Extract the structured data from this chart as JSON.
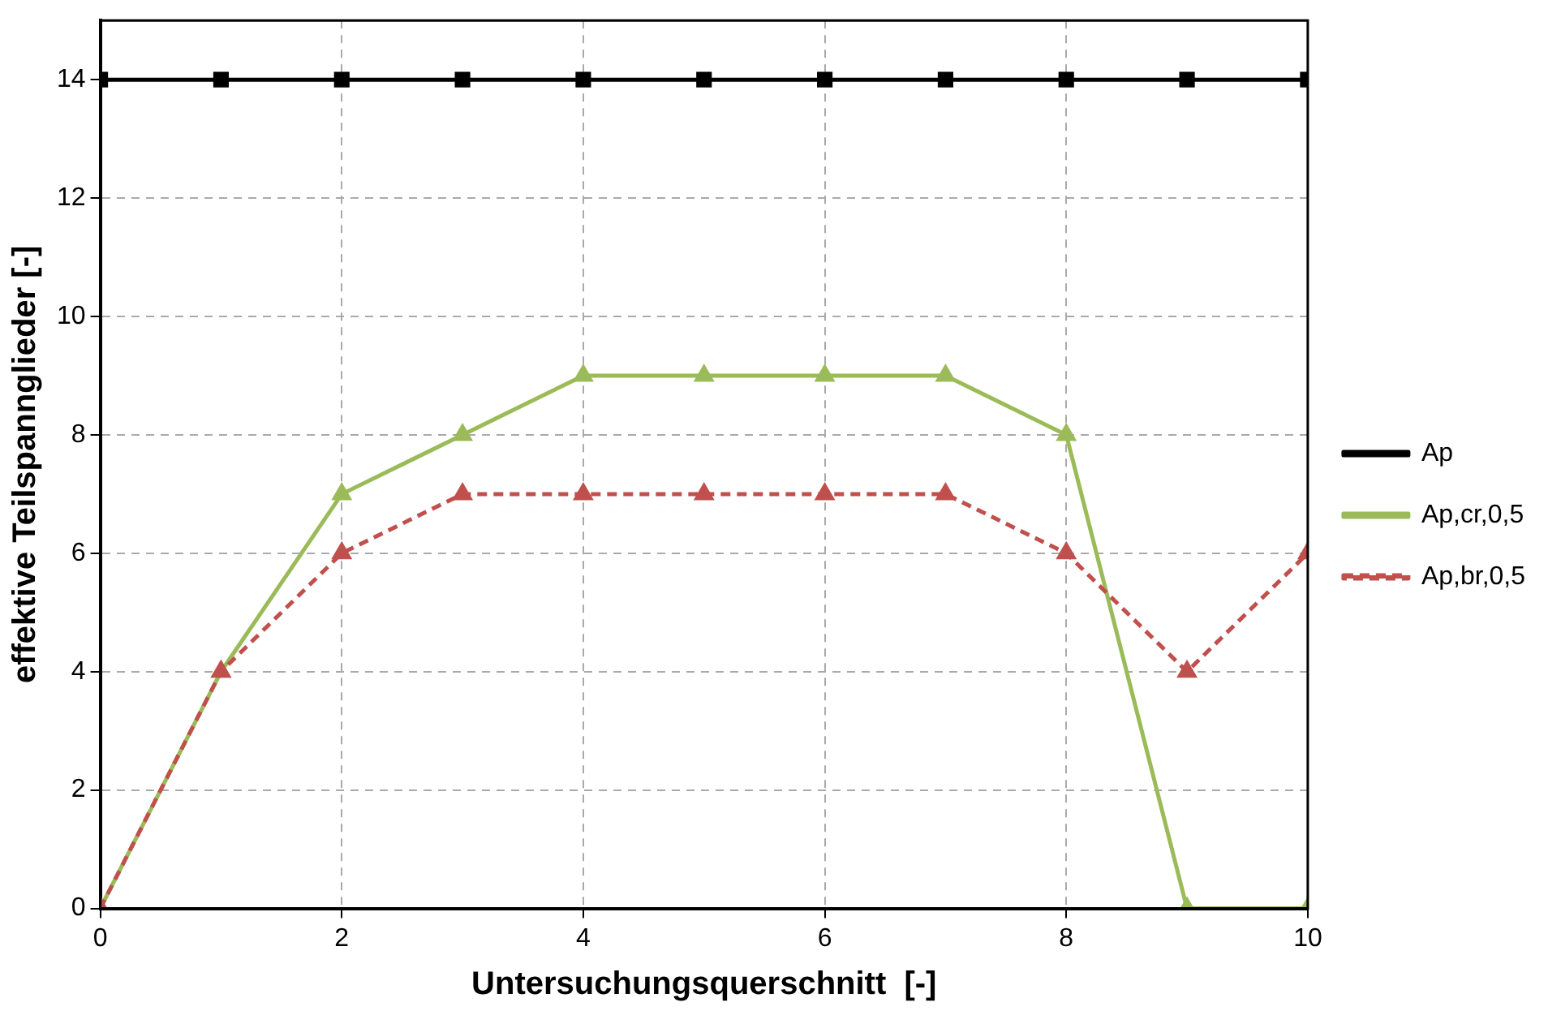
{
  "chart_data": {
    "type": "line",
    "xlabel": "Untersuchungsquerschnitt  [-]",
    "ylabel": "effektive Teilspannglieder [-]",
    "x": [
      0,
      1,
      2,
      3,
      4,
      5,
      6,
      7,
      8,
      9,
      10
    ],
    "xlim": [
      0,
      10
    ],
    "xticks": [
      0,
      2,
      4,
      6,
      8,
      10
    ],
    "ylim": [
      0,
      15
    ],
    "yticks": [
      0,
      2,
      4,
      6,
      8,
      10,
      12,
      14
    ],
    "grid": true,
    "legend": "right",
    "series": [
      {
        "name": "Ap",
        "color": "#000000",
        "marker": "square",
        "line_style": "solid",
        "values": [
          14,
          14,
          14,
          14,
          14,
          14,
          14,
          14,
          14,
          14,
          14
        ]
      },
      {
        "name": "Ap,cr,0,5",
        "color": "#9bbb59",
        "marker": "triangle",
        "line_style": "solid",
        "values": [
          0,
          4,
          7,
          8,
          9,
          9,
          9,
          9,
          8,
          0,
          0
        ]
      },
      {
        "name": "Ap,br,0,5",
        "color": "#c0504d",
        "marker": "triangle",
        "line_style": "dashed",
        "values": [
          0,
          4,
          6,
          7,
          7,
          7,
          7,
          7,
          6,
          4,
          6
        ]
      }
    ]
  }
}
